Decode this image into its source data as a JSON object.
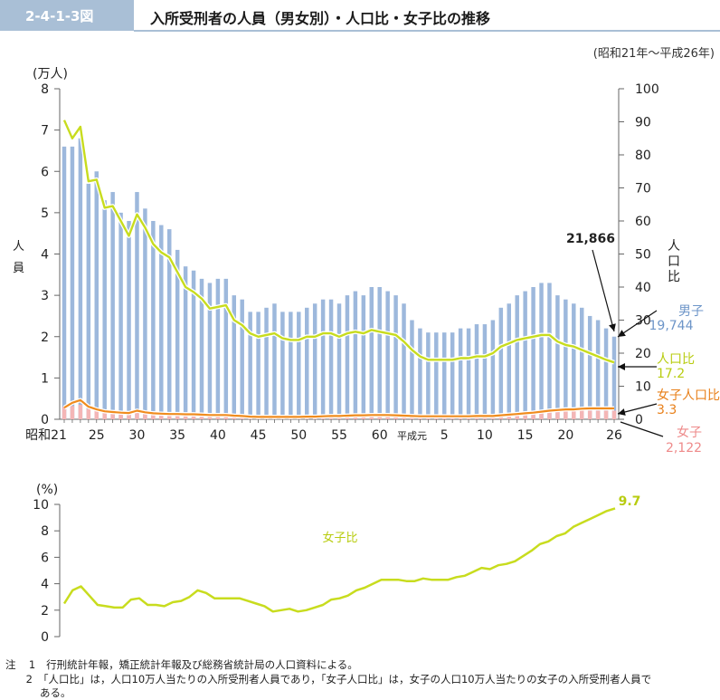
{
  "header": {
    "fig_number": "2-4-1-3図",
    "title": "入所受刑者の人員（男女別）・人口比・女子比の推移",
    "period": "(昭和21年～平成26年)"
  },
  "colors": {
    "male": "#9db8dc",
    "female": "#f4b6b6",
    "population_ratio": "#c8dc1e",
    "female_population_ratio": "#f08c1e",
    "female_share": "#c8dc1e",
    "header_badge": "#a9bfd6"
  },
  "chart_data": [
    {
      "type": "bar",
      "y_unit": "(万人)",
      "ylabel": "人員",
      "ylim": [
        0,
        8
      ],
      "yticks": [
        "0",
        "1",
        "2",
        "3",
        "4",
        "5",
        "6",
        "7",
        "8"
      ],
      "y2label": "人口比",
      "y2lim": [
        0,
        100
      ],
      "y2ticks": [
        "0",
        "10",
        "20",
        "30",
        "40",
        "50",
        "60",
        "70",
        "80",
        "90",
        "100"
      ],
      "xtick_labels": [
        "昭和21",
        "25",
        "30",
        "35",
        "40",
        "45",
        "50",
        "55",
        "60",
        "平成元",
        "5",
        "10",
        "15",
        "20",
        "26"
      ],
      "series": [
        {
          "name": "男子",
          "kind": "bar",
          "axis": "left",
          "unit": "万人",
          "values": [
            6.6,
            6.6,
            6.8,
            5.7,
            6.0,
            5.3,
            5.5,
            5.0,
            4.8,
            5.5,
            5.1,
            4.8,
            4.7,
            4.6,
            4.1,
            3.7,
            3.6,
            3.4,
            3.3,
            3.4,
            3.4,
            3.0,
            2.9,
            2.6,
            2.6,
            2.7,
            2.8,
            2.6,
            2.6,
            2.6,
            2.7,
            2.8,
            2.9,
            2.9,
            2.8,
            3.0,
            3.1,
            3.0,
            3.2,
            3.2,
            3.1,
            3.0,
            2.8,
            2.4,
            2.2,
            2.1,
            2.1,
            2.1,
            2.1,
            2.2,
            2.2,
            2.3,
            2.3,
            2.4,
            2.7,
            2.8,
            3.0,
            3.1,
            3.2,
            3.3,
            3.3,
            3.0,
            2.9,
            2.8,
            2.7,
            2.5,
            2.4,
            2.2,
            2.0
          ]
        },
        {
          "name": "女子",
          "kind": "bar",
          "axis": "left",
          "unit": "万人",
          "values": [
            0.3,
            0.32,
            0.35,
            0.25,
            0.2,
            0.18,
            0.17,
            0.16,
            0.16,
            0.2,
            0.17,
            0.15,
            0.14,
            0.14,
            0.13,
            0.13,
            0.12,
            0.12,
            0.11,
            0.11,
            0.11,
            0.1,
            0.09,
            0.08,
            0.07,
            0.07,
            0.07,
            0.07,
            0.07,
            0.07,
            0.08,
            0.08,
            0.09,
            0.1,
            0.1,
            0.11,
            0.12,
            0.12,
            0.13,
            0.13,
            0.13,
            0.12,
            0.11,
            0.1,
            0.09,
            0.09,
            0.09,
            0.09,
            0.09,
            0.09,
            0.09,
            0.1,
            0.1,
            0.1,
            0.12,
            0.13,
            0.14,
            0.15,
            0.16,
            0.17,
            0.18,
            0.19,
            0.2,
            0.2,
            0.21,
            0.21,
            0.21,
            0.21,
            0.21
          ]
        },
        {
          "name": "人口比",
          "kind": "line",
          "axis": "right",
          "values": [
            90.5,
            85.0,
            88.5,
            72.0,
            72.5,
            64.0,
            64.5,
            60.0,
            55.5,
            62.0,
            58.0,
            53.0,
            50.5,
            49.0,
            44.5,
            40.0,
            38.5,
            36.5,
            33.5,
            34.0,
            34.5,
            30.0,
            28.5,
            26.0,
            25.0,
            25.5,
            26.0,
            24.5,
            24.0,
            24.0,
            25.0,
            25.0,
            26.0,
            26.0,
            25.0,
            26.0,
            26.5,
            26.0,
            27.0,
            26.5,
            26.0,
            25.5,
            23.5,
            21.0,
            19.0,
            18.0,
            18.0,
            18.0,
            18.0,
            18.5,
            18.5,
            19.0,
            19.0,
            20.0,
            22.0,
            23.0,
            24.0,
            24.5,
            25.0,
            25.5,
            25.5,
            23.5,
            22.5,
            22.0,
            21.0,
            20.0,
            19.0,
            18.0,
            17.2
          ]
        },
        {
          "name": "女子人口比",
          "kind": "line",
          "axis": "right",
          "values": [
            3.5,
            5.0,
            5.8,
            3.8,
            3.0,
            2.4,
            2.2,
            2.0,
            1.9,
            2.6,
            2.1,
            1.8,
            1.7,
            1.6,
            1.6,
            1.5,
            1.5,
            1.4,
            1.3,
            1.3,
            1.3,
            1.1,
            1.0,
            0.8,
            0.7,
            0.7,
            0.7,
            0.7,
            0.7,
            0.7,
            0.8,
            0.8,
            0.9,
            1.0,
            1.0,
            1.1,
            1.2,
            1.2,
            1.3,
            1.3,
            1.3,
            1.2,
            1.1,
            1.0,
            0.9,
            0.9,
            0.9,
            0.9,
            0.9,
            0.9,
            0.9,
            1.0,
            1.0,
            1.0,
            1.2,
            1.4,
            1.6,
            1.8,
            2.0,
            2.3,
            2.6,
            2.8,
            3.0,
            3.0,
            3.2,
            3.3,
            3.3,
            3.3,
            3.3
          ]
        }
      ],
      "annotations": [
        {
          "id": "total",
          "text": "21,866"
        },
        {
          "id": "male",
          "label": "男子",
          "value": "19,744"
        },
        {
          "id": "pop_ratio",
          "label": "人口比",
          "value": "17.2"
        },
        {
          "id": "female_pop_ratio",
          "label": "女子人口比",
          "value": "3.3"
        },
        {
          "id": "female",
          "label": "女子",
          "value": "2,122"
        }
      ]
    },
    {
      "type": "line",
      "y_unit": "(%)",
      "ylim": [
        0,
        10
      ],
      "yticks": [
        "0",
        "2",
        "4",
        "6",
        "8",
        "10"
      ],
      "series": [
        {
          "name": "女子比",
          "values": [
            2.5,
            3.5,
            3.8,
            3.1,
            2.4,
            2.3,
            2.2,
            2.2,
            2.8,
            2.9,
            2.4,
            2.4,
            2.3,
            2.6,
            2.7,
            3.0,
            3.5,
            3.3,
            2.9,
            2.9,
            2.9,
            2.9,
            2.7,
            2.5,
            2.3,
            1.9,
            2.0,
            2.1,
            1.9,
            2.0,
            2.2,
            2.4,
            2.8,
            2.9,
            3.1,
            3.5,
            3.7,
            4.0,
            4.3,
            4.3,
            4.3,
            4.2,
            4.2,
            4.4,
            4.3,
            4.3,
            4.3,
            4.5,
            4.6,
            4.9,
            5.2,
            5.1,
            5.4,
            5.5,
            5.7,
            6.1,
            6.5,
            7.0,
            7.2,
            7.6,
            7.8,
            8.3,
            8.6,
            8.9,
            9.2,
            9.5,
            9.7
          ]
        }
      ],
      "annotations": [
        {
          "id": "last",
          "text": "9.7"
        }
      ]
    }
  ],
  "notes": [
    {
      "marker": "注",
      "num": "1",
      "text": "行刑統計年報，矯正統計年報及び総務省統計局の人口資料による。"
    },
    {
      "marker": "",
      "num": "2",
      "text": "「人口比」は，人口10万人当たりの入所受刑者人員であり，「女子人口比」は，女子の人口10万人当たりの女子の入所受刑者人員で"
    },
    {
      "marker": "",
      "num": "",
      "text": "ある。"
    }
  ]
}
